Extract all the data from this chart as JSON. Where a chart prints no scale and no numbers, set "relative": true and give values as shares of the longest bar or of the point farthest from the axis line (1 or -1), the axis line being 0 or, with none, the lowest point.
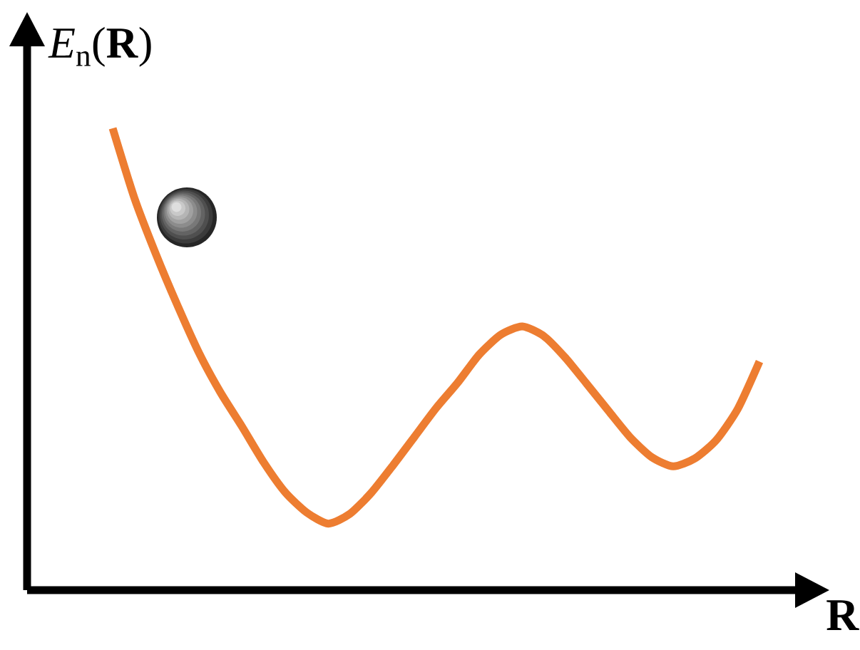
{
  "chart_data": {
    "type": "line",
    "relative": true,
    "xlabel": "**R**",
    "ylabel": "*E*$_{n}$(**R**)",
    "categories": [
      null,
      null,
      null,
      null,
      null,
      null,
      null,
      null,
      null,
      null,
      null,
      null,
      null,
      null,
      null,
      null,
      null,
      null,
      null,
      null,
      null,
      null,
      null,
      null,
      null,
      null,
      null,
      null,
      null,
      null,
      null
    ],
    "series": [
      {
        "color": "#ed7d31",
        "values": [
          1.0,
          0.85,
          0.728,
          0.617,
          0.514,
          0.428,
          0.354,
          0.277,
          0.212,
          0.168,
          0.144,
          0.165,
          0.211,
          0.27,
          0.332,
          0.394,
          0.449,
          0.51,
          0.553,
          0.571,
          0.55,
          0.503,
          0.446,
          0.388,
          0.331,
          0.288,
          0.268,
          0.285,
          0.325,
          0.393,
          0.495
        ]
      }
    ]
  }
}
